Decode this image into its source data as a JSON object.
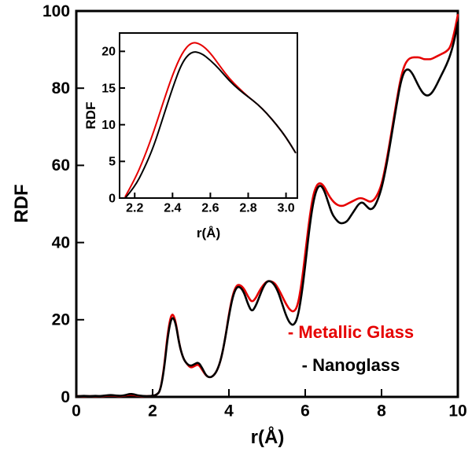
{
  "chart_data": {
    "type": "line",
    "title": "",
    "xlabel": "r(Å)",
    "ylabel": "RDF",
    "xlim": [
      0,
      10
    ],
    "ylim": [
      0,
      100
    ],
    "grid": false,
    "legend_position": "lower right",
    "xticks": [
      0,
      2,
      4,
      6,
      8,
      10
    ],
    "xtick_labels": [
      "0",
      "2",
      "4",
      "6",
      "8",
      "10"
    ],
    "yticks": [
      0,
      20,
      40,
      60,
      80,
      100
    ],
    "ytick_labels": [
      "0",
      "20",
      "40",
      "60",
      "80",
      "100"
    ],
    "x": {
      "start": 0,
      "step": 0.1,
      "count": 101
    },
    "series": [
      {
        "name": "Metallic Glass",
        "color": "#e60000",
        "values": [
          0.2,
          0.2,
          0.2,
          0.2,
          0.2,
          0.2,
          0.2,
          0.2,
          0.3,
          0.4,
          0.3,
          0.2,
          0.2,
          0.4,
          0.6,
          0.5,
          0.3,
          0.2,
          0.2,
          0.2,
          0.3,
          0.5,
          1.5,
          7.5,
          17,
          22,
          20,
          13.5,
          10,
          8.5,
          7.5,
          8,
          8.5,
          7,
          5.5,
          5,
          5.5,
          7,
          10,
          15,
          21.5,
          26.5,
          29,
          29,
          28,
          26,
          24.5,
          25.5,
          27.5,
          29,
          30,
          30,
          29.5,
          28,
          26,
          24,
          22.5,
          22,
          23.5,
          29,
          37,
          45.5,
          52,
          55,
          55.5,
          54.5,
          52.5,
          51,
          50,
          49.5,
          49.5,
          50,
          50.5,
          51,
          51.5,
          51.5,
          51,
          50.5,
          51,
          52.5,
          55,
          59.5,
          65,
          71,
          77,
          82.5,
          86,
          87.5,
          88,
          88,
          88,
          87.5,
          87.5,
          87.5,
          88,
          88.5,
          89,
          89.5,
          90.5,
          94,
          99
        ]
      },
      {
        "name": "Nanoglass",
        "color": "#000000",
        "values": [
          0.2,
          0.2,
          0.3,
          0.2,
          0.2,
          0.3,
          0.2,
          0.3,
          0.4,
          0.5,
          0.4,
          0.3,
          0.3,
          0.5,
          0.8,
          0.7,
          0.4,
          0.3,
          0.2,
          0.2,
          0.3,
          0.5,
          1.5,
          7,
          16,
          21,
          19.5,
          13.5,
          10,
          8.5,
          8,
          8.5,
          9,
          7.5,
          5.5,
          5,
          5.5,
          7,
          10,
          15,
          21,
          26,
          28.5,
          28.5,
          27,
          24,
          22,
          23.5,
          26,
          28.5,
          30,
          30,
          29,
          27,
          24,
          21,
          19,
          18.5,
          20.5,
          26,
          34,
          43,
          50,
          54,
          55,
          53.5,
          50.5,
          47.5,
          46,
          45,
          45,
          45.5,
          47,
          48.5,
          50,
          50.5,
          49.5,
          48.5,
          49,
          51,
          54,
          58.5,
          64,
          70,
          76,
          81.5,
          84.5,
          85,
          84,
          82,
          80,
          78.5,
          78,
          78.5,
          80,
          82,
          84,
          86,
          88.5,
          92,
          97
        ]
      }
    ],
    "legend": [
      {
        "label": "- Metallic Glass",
        "color": "#e60000"
      },
      {
        "label": "- Nanoglass",
        "color": "#000000"
      }
    ],
    "inset": {
      "type": "line",
      "xlabel": "r(Å)",
      "ylabel": "RDF",
      "xlim": [
        2.12,
        3.06
      ],
      "ylim": [
        0,
        22.5
      ],
      "xticks": [
        2.2,
        2.4,
        2.6,
        2.8,
        3.0
      ],
      "xtick_labels": [
        "2.2",
        "2.4",
        "2.6",
        "2.8",
        "3.0"
      ],
      "yticks": [
        0,
        5,
        10,
        15,
        20
      ],
      "ytick_labels": [
        "0",
        "5",
        "10",
        "15",
        "20"
      ],
      "x": {
        "start": 2.15,
        "step": 0.05,
        "count": 19
      },
      "series": [
        {
          "name": "Metallic Glass",
          "color": "#e60000",
          "values": [
            0.2,
            2.5,
            5.5,
            9,
            13,
            16.8,
            19.8,
            21.3,
            21,
            19.8,
            18,
            16.3,
            15,
            13.8,
            12.8,
            11.5,
            10,
            8.3,
            6.2
          ]
        },
        {
          "name": "Nanoglass",
          "color": "#000000",
          "values": [
            0,
            1.5,
            4,
            7,
            11,
            15,
            18.5,
            20,
            19.8,
            18.8,
            17.5,
            16,
            14.8,
            13.8,
            12.8,
            11.5,
            10,
            8.3,
            6.2
          ]
        }
      ]
    }
  }
}
